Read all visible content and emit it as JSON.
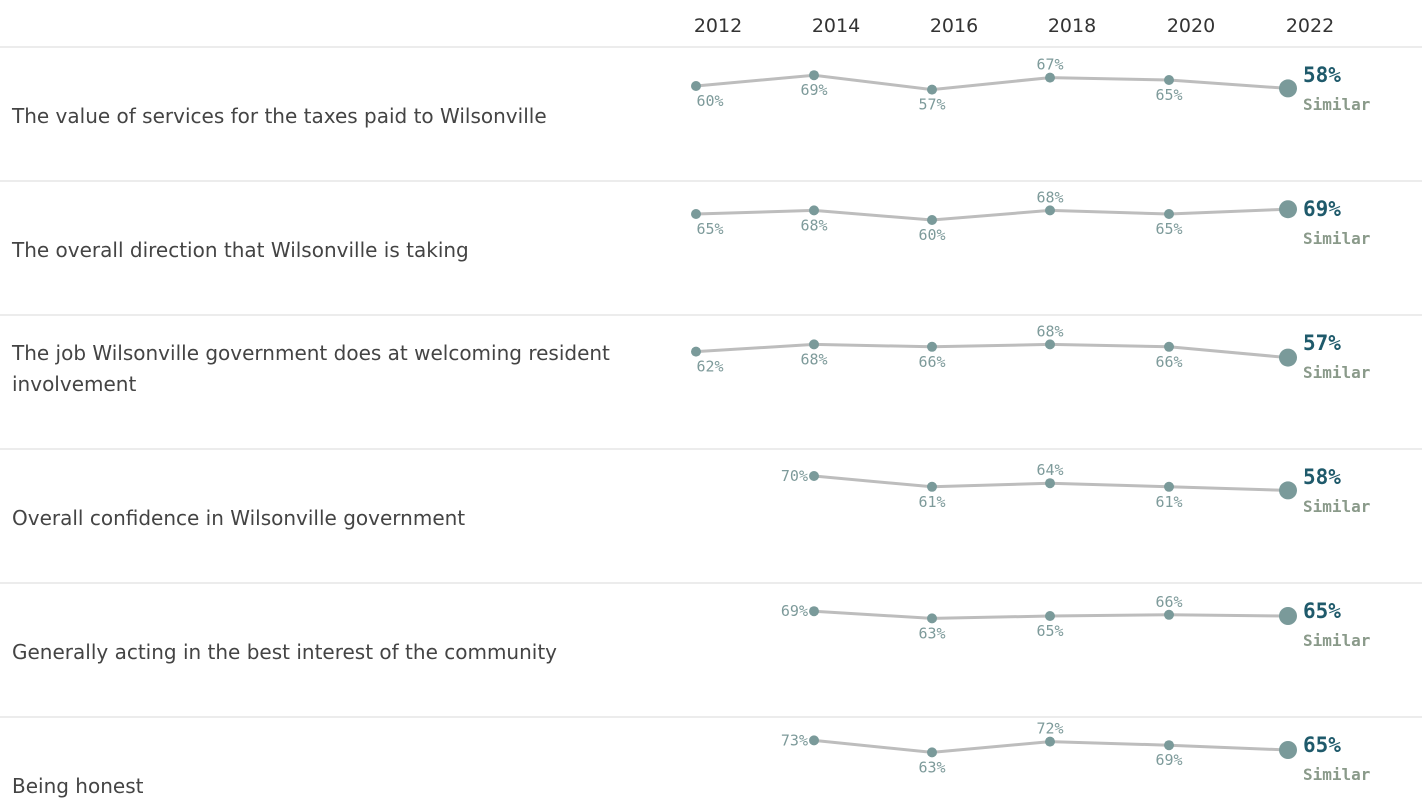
{
  "chart_data": {
    "type": "line",
    "x": [
      "2012",
      "2014",
      "2016",
      "2018",
      "2020",
      "2022"
    ],
    "series": [
      {
        "label": "The value of services for the taxes paid to Wilsonville",
        "values": [
          60,
          69,
          57,
          67,
          65,
          58
        ],
        "value_labels": [
          "60%",
          "69%",
          "57%",
          "67%",
          "65%",
          "58%"
        ],
        "comparison": "Similar"
      },
      {
        "label": "The overall direction that Wilsonville is taking",
        "values": [
          65,
          68,
          60,
          68,
          65,
          69
        ],
        "value_labels": [
          "65%",
          "68%",
          "60%",
          "68%",
          "65%",
          "69%"
        ],
        "comparison": "Similar"
      },
      {
        "label": "The job Wilsonville government does at welcoming resident involvement",
        "values": [
          62,
          68,
          66,
          68,
          66,
          57
        ],
        "value_labels": [
          "62%",
          "68%",
          "66%",
          "68%",
          "66%",
          "57%"
        ],
        "comparison": "Similar"
      },
      {
        "label": "Overall confidence in Wilsonville government",
        "values": [
          null,
          70,
          61,
          64,
          61,
          58
        ],
        "value_labels": [
          null,
          "70%",
          "61%",
          "64%",
          "61%",
          "58%"
        ],
        "comparison": "Similar"
      },
      {
        "label": "Generally acting in the best interest of the community",
        "values": [
          null,
          69,
          63,
          65,
          66,
          65
        ],
        "value_labels": [
          null,
          "69%",
          "63%",
          "65%",
          "66%",
          "65%"
        ],
        "comparison": "Similar"
      },
      {
        "label": "Being honest",
        "values": [
          null,
          73,
          63,
          72,
          69,
          65
        ],
        "value_labels": [
          null,
          "73%",
          "63%",
          "72%",
          "69%",
          "65%"
        ],
        "comparison": "Similar"
      }
    ],
    "colors": {
      "line": "#bdbdbd",
      "point": "#7a9a9a",
      "point_label": "#7d9a9a",
      "last_value": "#1f5a6b",
      "comparison": "#8a9a8a",
      "separator": "#d9d9d9"
    }
  }
}
